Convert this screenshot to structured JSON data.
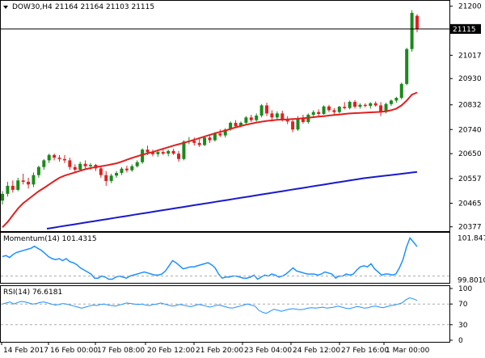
{
  "header": {
    "symbol": "DOW30,H4",
    "ohlc": "21164 21164 21103 21115"
  },
  "indicators": {
    "momentum_label": "Momentum(14) 101.4315",
    "rsi_label": "RSI(14) 76.6181"
  },
  "chart_data": [
    {
      "type": "candlestick",
      "title": "DOW30,H4",
      "last_price": "21115",
      "y_ticks": [
        "21200",
        "21115",
        "21017",
        "20930",
        "20832",
        "20740",
        "20650",
        "20557",
        "20465",
        "20377"
      ],
      "ylim": [
        20370,
        21205
      ],
      "x_ticks": [
        "14 Feb 2017",
        "16 Feb 00:00",
        "17 Feb 08:00",
        "20 Feb 12:00",
        "21 Feb 20:00",
        "23 Feb 04:00",
        "24 Feb 12:00",
        "27 Feb 16:00",
        "1 Mar 00:00"
      ],
      "candles": [
        [
          20475,
          20510,
          20460,
          20500
        ],
        [
          20500,
          20545,
          20490,
          20530
        ],
        [
          20530,
          20550,
          20505,
          20515
        ],
        [
          20515,
          20560,
          20510,
          20550
        ],
        [
          20550,
          20575,
          20535,
          20545
        ],
        [
          20545,
          20560,
          20520,
          20535
        ],
        [
          20535,
          20580,
          20525,
          20570
        ],
        [
          20570,
          20605,
          20560,
          20600
        ],
        [
          20600,
          20630,
          20590,
          20625
        ],
        [
          20625,
          20650,
          20615,
          20645
        ],
        [
          20645,
          20650,
          20625,
          20635
        ],
        [
          20635,
          20645,
          20620,
          20630
        ],
        [
          20630,
          20645,
          20615,
          20625
        ],
        [
          20625,
          20635,
          20590,
          20600
        ],
        [
          20600,
          20610,
          20580,
          20590
        ],
        [
          20590,
          20620,
          20585,
          20612
        ],
        [
          20612,
          20625,
          20595,
          20603
        ],
        [
          20603,
          20615,
          20590,
          20608
        ],
        [
          20608,
          20612,
          20585,
          20595
        ],
        [
          20595,
          20600,
          20560,
          20570
        ],
        [
          20570,
          20585,
          20530,
          20548
        ],
        [
          20548,
          20575,
          20540,
          20568
        ],
        [
          20568,
          20585,
          20560,
          20578
        ],
        [
          20578,
          20600,
          20570,
          20594
        ],
        [
          20594,
          20605,
          20580,
          20588
        ],
        [
          20588,
          20610,
          20582,
          20603
        ],
        [
          20603,
          20625,
          20598,
          20618
        ],
        [
          20618,
          20670,
          20612,
          20665
        ],
        [
          20665,
          20680,
          20645,
          20655
        ],
        [
          20655,
          20665,
          20640,
          20648
        ],
        [
          20648,
          20662,
          20638,
          20656
        ],
        [
          20656,
          20668,
          20645,
          20650
        ],
        [
          20650,
          20665,
          20640,
          20660
        ],
        [
          20660,
          20668,
          20645,
          20650
        ],
        [
          20650,
          20660,
          20620,
          20630
        ],
        [
          20630,
          20700,
          20625,
          20695
        ],
        [
          20695,
          20712,
          20685,
          20698
        ],
        [
          20698,
          20710,
          20680,
          20690
        ],
        [
          20690,
          20705,
          20675,
          20682
        ],
        [
          20682,
          20715,
          20678,
          20710
        ],
        [
          20710,
          20720,
          20690,
          20700
        ],
        [
          20700,
          20730,
          20695,
          20725
        ],
        [
          20725,
          20740,
          20712,
          20718
        ],
        [
          20718,
          20745,
          20710,
          20740
        ],
        [
          20740,
          20770,
          20735,
          20765
        ],
        [
          20765,
          20775,
          20745,
          20752
        ],
        [
          20752,
          20770,
          20748,
          20765
        ],
        [
          20765,
          20790,
          20758,
          20785
        ],
        [
          20785,
          20795,
          20768,
          20775
        ],
        [
          20775,
          20800,
          20770,
          20792
        ],
        [
          20792,
          20835,
          20785,
          20830
        ],
        [
          20830,
          20840,
          20790,
          20800
        ],
        [
          20800,
          20812,
          20770,
          20785
        ],
        [
          20785,
          20808,
          20775,
          20800
        ],
        [
          20800,
          20810,
          20770,
          20778
        ],
        [
          20778,
          20790,
          20760,
          20770
        ],
        [
          20770,
          20780,
          20730,
          20740
        ],
        [
          20740,
          20790,
          20735,
          20782
        ],
        [
          20782,
          20795,
          20762,
          20768
        ],
        [
          20768,
          20800,
          20762,
          20795
        ],
        [
          20795,
          20812,
          20788,
          20805
        ],
        [
          20805,
          20815,
          20790,
          20798
        ],
        [
          20798,
          20830,
          20795,
          20826
        ],
        [
          20826,
          20832,
          20805,
          20812
        ],
        [
          20812,
          20820,
          20795,
          20805
        ],
        [
          20805,
          20828,
          20800,
          20825
        ],
        [
          20825,
          20842,
          20815,
          20820
        ],
        [
          20820,
          20848,
          20815,
          20843
        ],
        [
          20843,
          20850,
          20818,
          20825
        ],
        [
          20825,
          20838,
          20818,
          20832
        ],
        [
          20832,
          20838,
          20822,
          20828
        ],
        [
          20828,
          20842,
          20818,
          20838
        ],
        [
          20838,
          20845,
          20825,
          20830
        ],
        [
          20830,
          20842,
          20790,
          20805
        ],
        [
          20805,
          20840,
          20800,
          20835
        ],
        [
          20835,
          20852,
          20828,
          20848
        ],
        [
          20848,
          20862,
          20840,
          20858
        ],
        [
          20858,
          20915,
          20852,
          20910
        ],
        [
          20910,
          21045,
          20905,
          21040
        ],
        [
          21040,
          21185,
          21030,
          21175
        ],
        [
          21164,
          21170,
          21103,
          21115
        ]
      ],
      "series": [
        {
          "name": "",
          "color": "#e02020",
          "values": [
            20375,
            20395,
            20420,
            20445,
            20465,
            20480,
            20495,
            20510,
            20522,
            20535,
            20548,
            20560,
            20568,
            20574,
            20580,
            20586,
            20592,
            20596,
            20600,
            20603,
            20606,
            20610,
            20614,
            20620,
            20627,
            20634,
            20640,
            20646,
            20651,
            20656,
            20662,
            20668,
            20674,
            20680,
            20685,
            20690,
            20696,
            20702,
            20708,
            20714,
            20720,
            20726,
            20731,
            20736,
            20742,
            20748,
            20753,
            20758,
            20762,
            20766,
            20769,
            20772,
            20774,
            20776,
            20777,
            20778,
            20779,
            20780,
            20782,
            20784,
            20786,
            20788,
            20790,
            20792,
            20794,
            20796,
            20798,
            20800,
            20801,
            20802,
            20803,
            20804,
            20805,
            20806,
            20808,
            20812,
            20818,
            20830,
            20848,
            20870,
            20878
          ]
        },
        {
          "name": "",
          "color": "#1a1acc",
          "values": [
            20361,
            20364,
            20367,
            20370,
            20374,
            20378,
            20382,
            20386,
            20390,
            20394,
            20398,
            20402,
            20406,
            20410,
            20414,
            20418,
            20422,
            20426,
            20430,
            20434,
            20438,
            20442,
            20446,
            20450,
            20454,
            20458,
            20462,
            20466,
            20470,
            20474,
            20478,
            20482,
            20486,
            20490,
            20494,
            20498,
            20502,
            20506,
            20510,
            20514,
            20518,
            20522,
            20526,
            20530,
            20534,
            20538,
            20542,
            20546,
            20550,
            20554,
            20558,
            20561,
            20564,
            20567,
            20570,
            20573,
            20576,
            20579,
            20582
          ]
        }
      ]
    },
    {
      "type": "line",
      "title": "Momentum(14) 101.4315",
      "y_ticks": [
        "101.8476",
        "99.80105"
      ],
      "ylim": [
        99.75,
        101.95
      ],
      "series": [
        {
          "name": "Momentum(14)",
          "color": "#1e90ff",
          "values": [
            100.95,
            101.0,
            100.9,
            101.05,
            101.15,
            101.2,
            101.25,
            101.3,
            101.35,
            101.45,
            101.35,
            101.25,
            101.1,
            100.95,
            100.85,
            100.8,
            100.85,
            100.75,
            100.85,
            100.7,
            100.65,
            100.55,
            100.4,
            100.3,
            100.2,
            100.1,
            99.9,
            99.9,
            100.0,
            99.95,
            99.85,
            99.85,
            99.95,
            100.0,
            99.95,
            99.9,
            100.0,
            100.05,
            100.1,
            100.15,
            100.2,
            100.15,
            100.1,
            100.05,
            100.05,
            100.1,
            100.25,
            100.5,
            100.75,
            100.65,
            100.5,
            100.35,
            100.4,
            100.45,
            100.45,
            100.5,
            100.55,
            100.6,
            100.65,
            100.55,
            100.4,
            100.1,
            99.9,
            99.95,
            99.95,
            100.0,
            100.0,
            99.95,
            99.9,
            99.9,
            99.95,
            100.05,
            99.85,
            99.95,
            100.05,
            100.0,
            100.1,
            100.05,
            99.95,
            100.0,
            100.1,
            100.25,
            100.4,
            100.25,
            100.2,
            100.15,
            100.1,
            100.1,
            100.1,
            100.05,
            100.1,
            100.2,
            100.15,
            100.1,
            99.9,
            100.0,
            100.0,
            100.1,
            100.05,
            100.1,
            100.3,
            100.45,
            100.5,
            100.45,
            100.6,
            100.35,
            100.2,
            100.05,
            100.1,
            100.1,
            100.05,
            100.1,
            100.4,
            100.8,
            101.4,
            101.85,
            101.65,
            101.43
          ]
        }
      ]
    },
    {
      "type": "line",
      "title": "RSI(14) 76.6181",
      "y_ticks": [
        "100",
        "70",
        "30",
        "0"
      ],
      "ylim": [
        0,
        100
      ],
      "series": [
        {
          "name": "RSI(14)",
          "color": "#1e90ff",
          "values": [
            70,
            72,
            74,
            70,
            73,
            75,
            74,
            72,
            70,
            71,
            73,
            74,
            72,
            70,
            68,
            69,
            71,
            70,
            68,
            66,
            64,
            62,
            64,
            66,
            68,
            67,
            69,
            70,
            68,
            67,
            66,
            68,
            70,
            72,
            71,
            70,
            69,
            70,
            68,
            67,
            69,
            70,
            72,
            70,
            68,
            66,
            67,
            69,
            68,
            66,
            65,
            67,
            69,
            68,
            66,
            64,
            66,
            68,
            67,
            65,
            63,
            62,
            64,
            66,
            68,
            70,
            68,
            66,
            58,
            54,
            52,
            56,
            60,
            58,
            56,
            58,
            60,
            61,
            60,
            59,
            60,
            62,
            63,
            62,
            63,
            64,
            62,
            63,
            64,
            66,
            64,
            62,
            61,
            63,
            65,
            64,
            62,
            63,
            65,
            66,
            64,
            63,
            65,
            67,
            68,
            70,
            72,
            78,
            82,
            80,
            77
          ]
        }
      ]
    }
  ]
}
